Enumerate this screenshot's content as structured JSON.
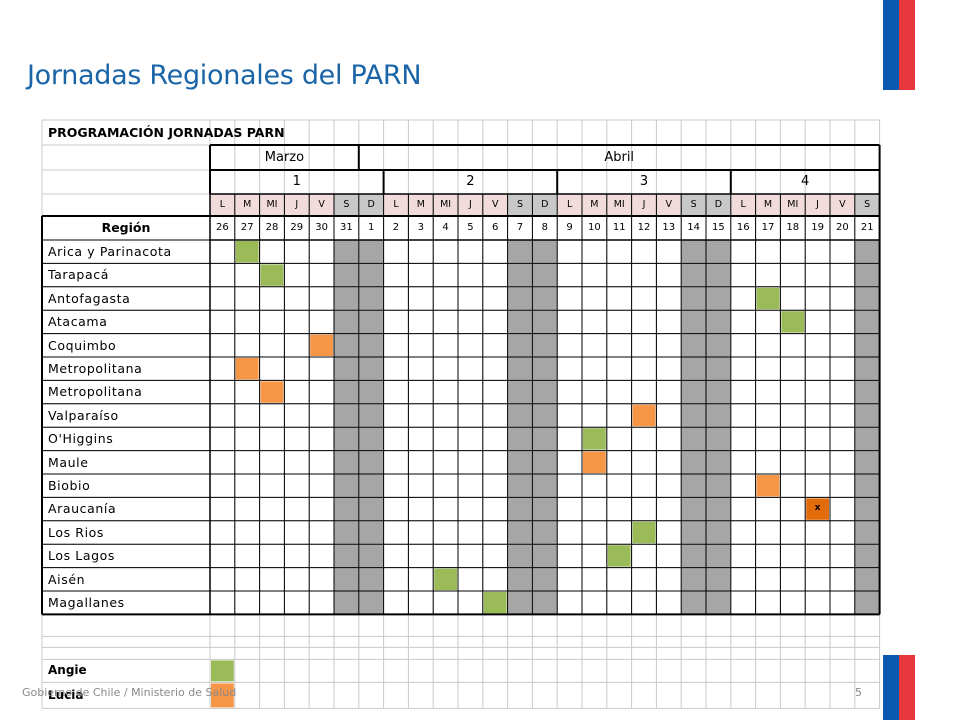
{
  "title": "Jornadas Regionales del PARN",
  "footer": "Gobierno de Chile / Ministerio de Salud",
  "page_number": "5",
  "table": {
    "heading": "PROGRAMACIÓN JORNADAS PARN",
    "months": [
      "Marzo",
      "Abril"
    ],
    "weeks": [
      "1",
      "2",
      "3",
      "4"
    ],
    "weekdays": [
      "L",
      "M",
      "MI",
      "J",
      "V",
      "S",
      "D",
      "L",
      "M",
      "MI",
      "J",
      "V",
      "S",
      "D",
      "L",
      "M",
      "MI",
      "J",
      "V",
      "S",
      "D",
      "L",
      "M",
      "MI",
      "J",
      "V",
      "S"
    ],
    "region_header": "Región",
    "dates": [
      "26",
      "27",
      "28",
      "29",
      "30",
      "31",
      "1",
      "2",
      "3",
      "4",
      "5",
      "6",
      "7",
      "8",
      "9",
      "10",
      "11",
      "12",
      "13",
      "14",
      "15",
      "16",
      "17",
      "18",
      "19",
      "20",
      "21"
    ],
    "weekend_columns": [
      5,
      6,
      12,
      13,
      19,
      20,
      26
    ],
    "regions": [
      {
        "name": "Arica y Parinacota",
        "marks": [
          {
            "col": 1,
            "color": "green"
          }
        ]
      },
      {
        "name": "Tarapacá",
        "marks": [
          {
            "col": 2,
            "color": "green"
          }
        ]
      },
      {
        "name": "Antofagasta",
        "marks": [
          {
            "col": 22,
            "color": "green"
          }
        ]
      },
      {
        "name": "Atacama",
        "marks": [
          {
            "col": 23,
            "color": "green"
          }
        ]
      },
      {
        "name": "Coquimbo",
        "marks": [
          {
            "col": 4,
            "color": "orange"
          }
        ]
      },
      {
        "name": "Metropolitana",
        "marks": [
          {
            "col": 1,
            "color": "orange"
          }
        ]
      },
      {
        "name": "Metropolitana",
        "marks": [
          {
            "col": 2,
            "color": "orange"
          }
        ]
      },
      {
        "name": "Valparaíso",
        "marks": [
          {
            "col": 17,
            "color": "orange"
          }
        ]
      },
      {
        "name": "O'Higgins",
        "marks": [
          {
            "col": 15,
            "color": "green"
          }
        ]
      },
      {
        "name": "Maule",
        "marks": [
          {
            "col": 15,
            "color": "orange"
          }
        ]
      },
      {
        "name": "Biobio",
        "marks": [
          {
            "col": 22,
            "color": "orange"
          }
        ]
      },
      {
        "name": "Araucanía",
        "marks": [
          {
            "col": 24,
            "color": "darkorange",
            "text": "x"
          }
        ]
      },
      {
        "name": "Los Rios",
        "marks": [
          {
            "col": 17,
            "color": "green"
          }
        ]
      },
      {
        "name": "Los Lagos",
        "marks": [
          {
            "col": 16,
            "color": "green"
          }
        ]
      },
      {
        "name": "Aisén",
        "marks": [
          {
            "col": 9,
            "color": "green"
          }
        ]
      },
      {
        "name": "Magallanes",
        "marks": [
          {
            "col": 11,
            "color": "green"
          }
        ]
      }
    ],
    "legend": [
      {
        "name": "Angie",
        "color": "green"
      },
      {
        "name": "Lucia",
        "color": "orange"
      }
    ]
  },
  "colors": {
    "green": "#9bbb59",
    "orange": "#f79646",
    "darkorange": "#e26b0a",
    "weekend": "#a6a6a6",
    "weekday_header": "#f2dcdb",
    "title": "#1a65a7",
    "flag_blue": "#0b58b0",
    "flag_red": "#e8383d"
  }
}
